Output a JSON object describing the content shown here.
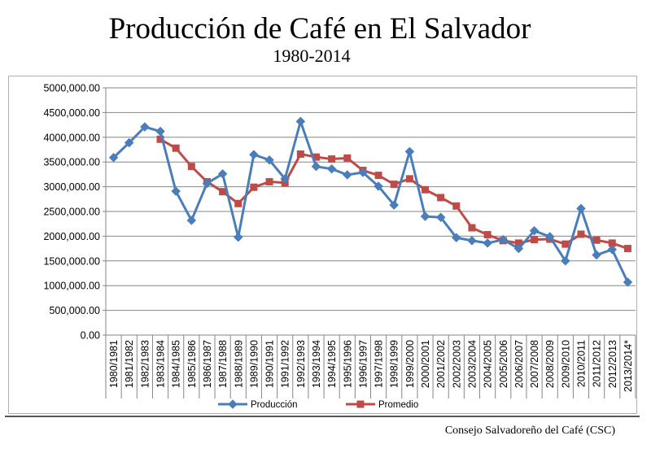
{
  "title": "Producción de Café en El Salvador",
  "subtitle": "1980-2014",
  "source": "Consejo Salvadoreño del Café (CSC)",
  "colors": {
    "produccion": "#4a7ebb",
    "promedio": "#be4b48",
    "grid": "#868686"
  },
  "chart_data": {
    "type": "line",
    "title": "Producción de Café en El Salvador",
    "subtitle": "1980-2014",
    "xlabel": "",
    "ylabel": "",
    "ylim": [
      0,
      5000000
    ],
    "yticks": [
      "0.00",
      "500,000.00",
      "1000,000.00",
      "1500,000.00",
      "2000,000.00",
      "2500,000.00",
      "3000,000.00",
      "3500,000.00",
      "4000,000.00",
      "4500,000.00",
      "5000,000.00"
    ],
    "grid": "horizontal",
    "legend": "bottom",
    "categories": [
      "1980/1981",
      "1981/1982",
      "1982/1983",
      "1983/1984",
      "1984/1985",
      "1985/1986",
      "1986/1987",
      "1987/1988",
      "1988/1989",
      "1989/1990",
      "1990/1991",
      "1991/1992",
      "1992/1993",
      "1993/1994",
      "1994/1995",
      "1995/1996",
      "1996/1997",
      "1997/1998",
      "1998/1999",
      "1999/2000",
      "2000/2001",
      "2001/2002",
      "2002/2003",
      "2003/2004",
      "2004/2005",
      "2005/2006",
      "2006/2007",
      "2007/2008",
      "2008/2009",
      "2009/2010",
      "2010/2011",
      "2011/2012",
      "2012/2013",
      "2013/2014*"
    ],
    "series": [
      {
        "name": "Producción",
        "marker": "diamond",
        "values": [
          3590000,
          3890000,
          4210000,
          4120000,
          2910000,
          2320000,
          3070000,
          3260000,
          1980000,
          3650000,
          3540000,
          3160000,
          4320000,
          3410000,
          3360000,
          3240000,
          3290000,
          3010000,
          2630000,
          3710000,
          2400000,
          2380000,
          1970000,
          1910000,
          1860000,
          1930000,
          1750000,
          2110000,
          1990000,
          1500000,
          2560000,
          1620000,
          1730000,
          1070000
        ]
      },
      {
        "name": "Promedio",
        "marker": "square",
        "values": [
          null,
          null,
          null,
          3960000,
          3780000,
          3410000,
          3100000,
          2900000,
          2660000,
          2990000,
          3100000,
          3080000,
          3660000,
          3600000,
          3560000,
          3580000,
          3330000,
          3230000,
          3050000,
          3160000,
          2940000,
          2780000,
          2610000,
          2170000,
          2030000,
          1910000,
          1860000,
          1930000,
          1940000,
          1840000,
          2040000,
          1920000,
          1860000,
          1750000
        ]
      }
    ]
  }
}
